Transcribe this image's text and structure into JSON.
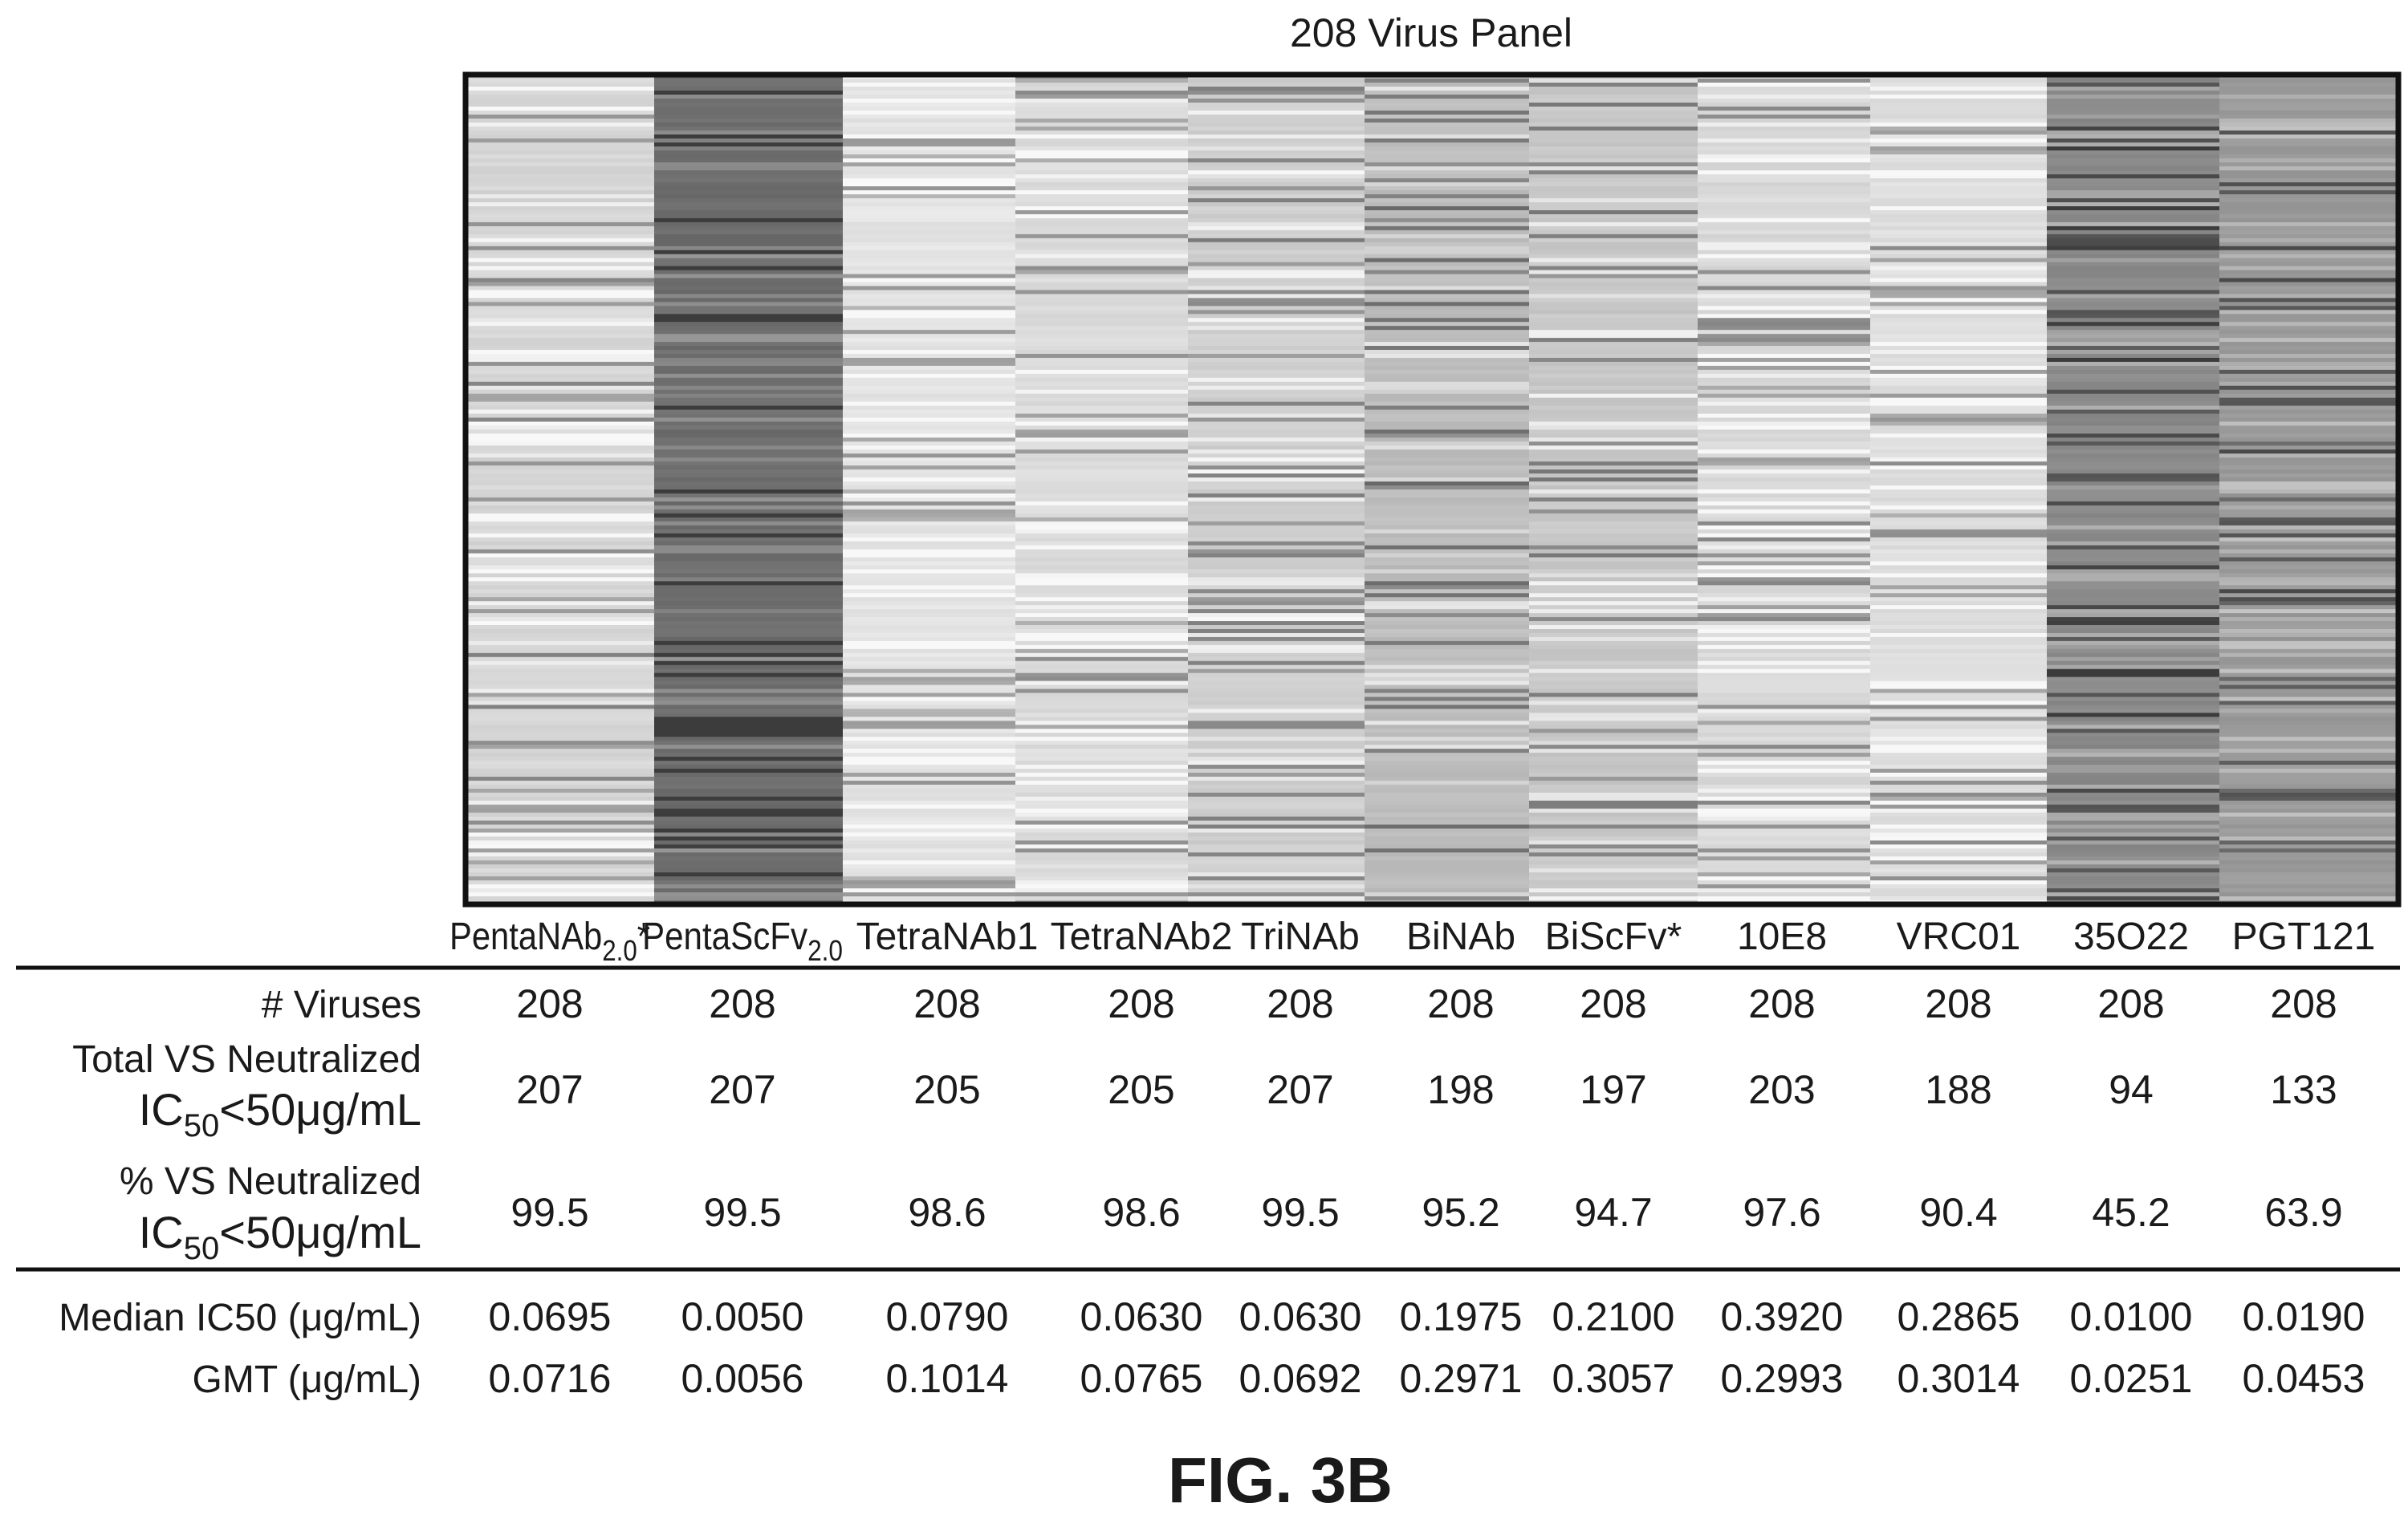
{
  "chart_data": {
    "type": "heatmap",
    "title": "208 Virus Panel",
    "figure_label": "FIG. 3B",
    "columns": [
      {
        "name": "PentaNAb",
        "sub": "2.0",
        "suffix": "*"
      },
      {
        "name": "PentaScFv",
        "sub": "2.0",
        "suffix": ""
      },
      {
        "name": "TetraNAb1",
        "sub": "",
        "suffix": ""
      },
      {
        "name": "TetraNAb2",
        "sub": "",
        "suffix": ""
      },
      {
        "name": "TriNAb",
        "sub": "",
        "suffix": ""
      },
      {
        "name": "BiNAb",
        "sub": "",
        "suffix": ""
      },
      {
        "name": "BiScFv",
        "sub": "",
        "suffix": "*"
      },
      {
        "name": "10E8",
        "sub": "",
        "suffix": ""
      },
      {
        "name": "VRC01",
        "sub": "",
        "suffix": ""
      },
      {
        "name": "35O22",
        "sub": "",
        "suffix": ""
      },
      {
        "name": "PGT121",
        "sub": "",
        "suffix": ""
      }
    ],
    "column_base_shade": [
      "#d6d6d6",
      "#6e6e6e",
      "#e4e4e4",
      "#dcdcdc",
      "#cfcfcf",
      "#bdbdbd",
      "#c8c8c8",
      "#d9d9d9",
      "#dedede",
      "#8a8a8a",
      "#9a9a9a"
    ],
    "rows_count": 208,
    "table": {
      "rows": [
        {
          "label_lines": [
            {
              "text": "# Viruses"
            }
          ],
          "values": [
            "208",
            "208",
            "208",
            "208",
            "208",
            "208",
            "208",
            "208",
            "208",
            "208",
            "208"
          ]
        },
        {
          "label_lines": [
            {
              "text": "Total VS Neutralized"
            },
            {
              "ic_prefix": "IC",
              "ic_sub": "50",
              "ic_rest": "<50μg/mL"
            }
          ],
          "values": [
            "207",
            "207",
            "205",
            "205",
            "207",
            "198",
            "197",
            "203",
            "188",
            "94",
            "133"
          ]
        },
        {
          "label_lines": [
            {
              "text": "% VS Neutralized"
            },
            {
              "ic_prefix": "IC",
              "ic_sub": "50",
              "ic_rest": "<50μg/mL"
            }
          ],
          "values": [
            "99.5",
            "99.5",
            "98.6",
            "98.6",
            "99.5",
            "95.2",
            "94.7",
            "97.6",
            "90.4",
            "45.2",
            "63.9"
          ]
        },
        {
          "label_lines": [
            {
              "text": "Median IC50 (μg/mL)"
            }
          ],
          "values": [
            "0.0695",
            "0.0050",
            "0.0790",
            "0.0630",
            "0.0630",
            "0.1975",
            "0.2100",
            "0.3920",
            "0.2865",
            "0.0100",
            "0.0190"
          ]
        },
        {
          "label_lines": [
            {
              "text": "GMT (μg/mL)"
            }
          ],
          "values": [
            "0.0716",
            "0.0056",
            "0.1014",
            "0.0765",
            "0.0692",
            "0.2971",
            "0.3057",
            "0.2993",
            "0.3014",
            "0.0251",
            "0.0453"
          ]
        }
      ]
    }
  }
}
